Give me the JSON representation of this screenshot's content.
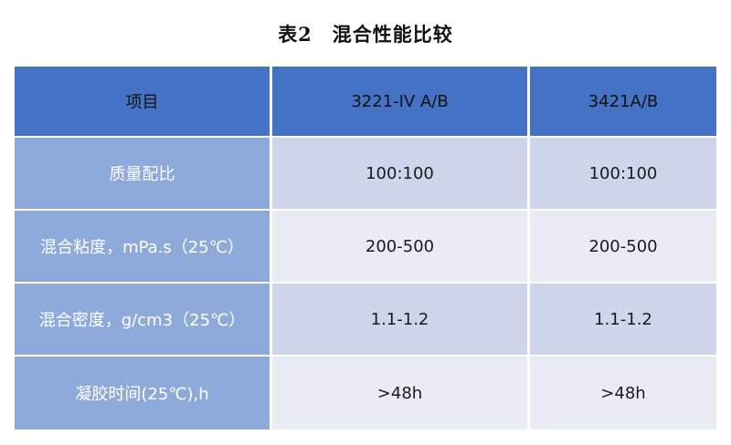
{
  "title": "表2　混合性能比较",
  "table": {
    "headers": [
      "项目",
      "3221-IV A/B",
      "3421A/B"
    ],
    "rows": [
      {
        "label": "质量配比",
        "values": [
          "100:100",
          "100:100"
        ]
      },
      {
        "label": "混合粘度，mPa.s（25℃）",
        "values": [
          "200-500",
          "200-500"
        ]
      },
      {
        "label": "混合密度，g/cm3（25℃）",
        "values": [
          "1.1-1.2",
          "1.1-1.2"
        ]
      },
      {
        "label": "凝胶时间(25℃),h",
        "values": [
          ">48h",
          ">48h"
        ]
      }
    ]
  },
  "colors": {
    "header_bg": "#4472c4",
    "row_label_bg": "#8eaadb",
    "row_band_dark": "#cfd5ea",
    "row_band_light": "#e9ebf5"
  }
}
